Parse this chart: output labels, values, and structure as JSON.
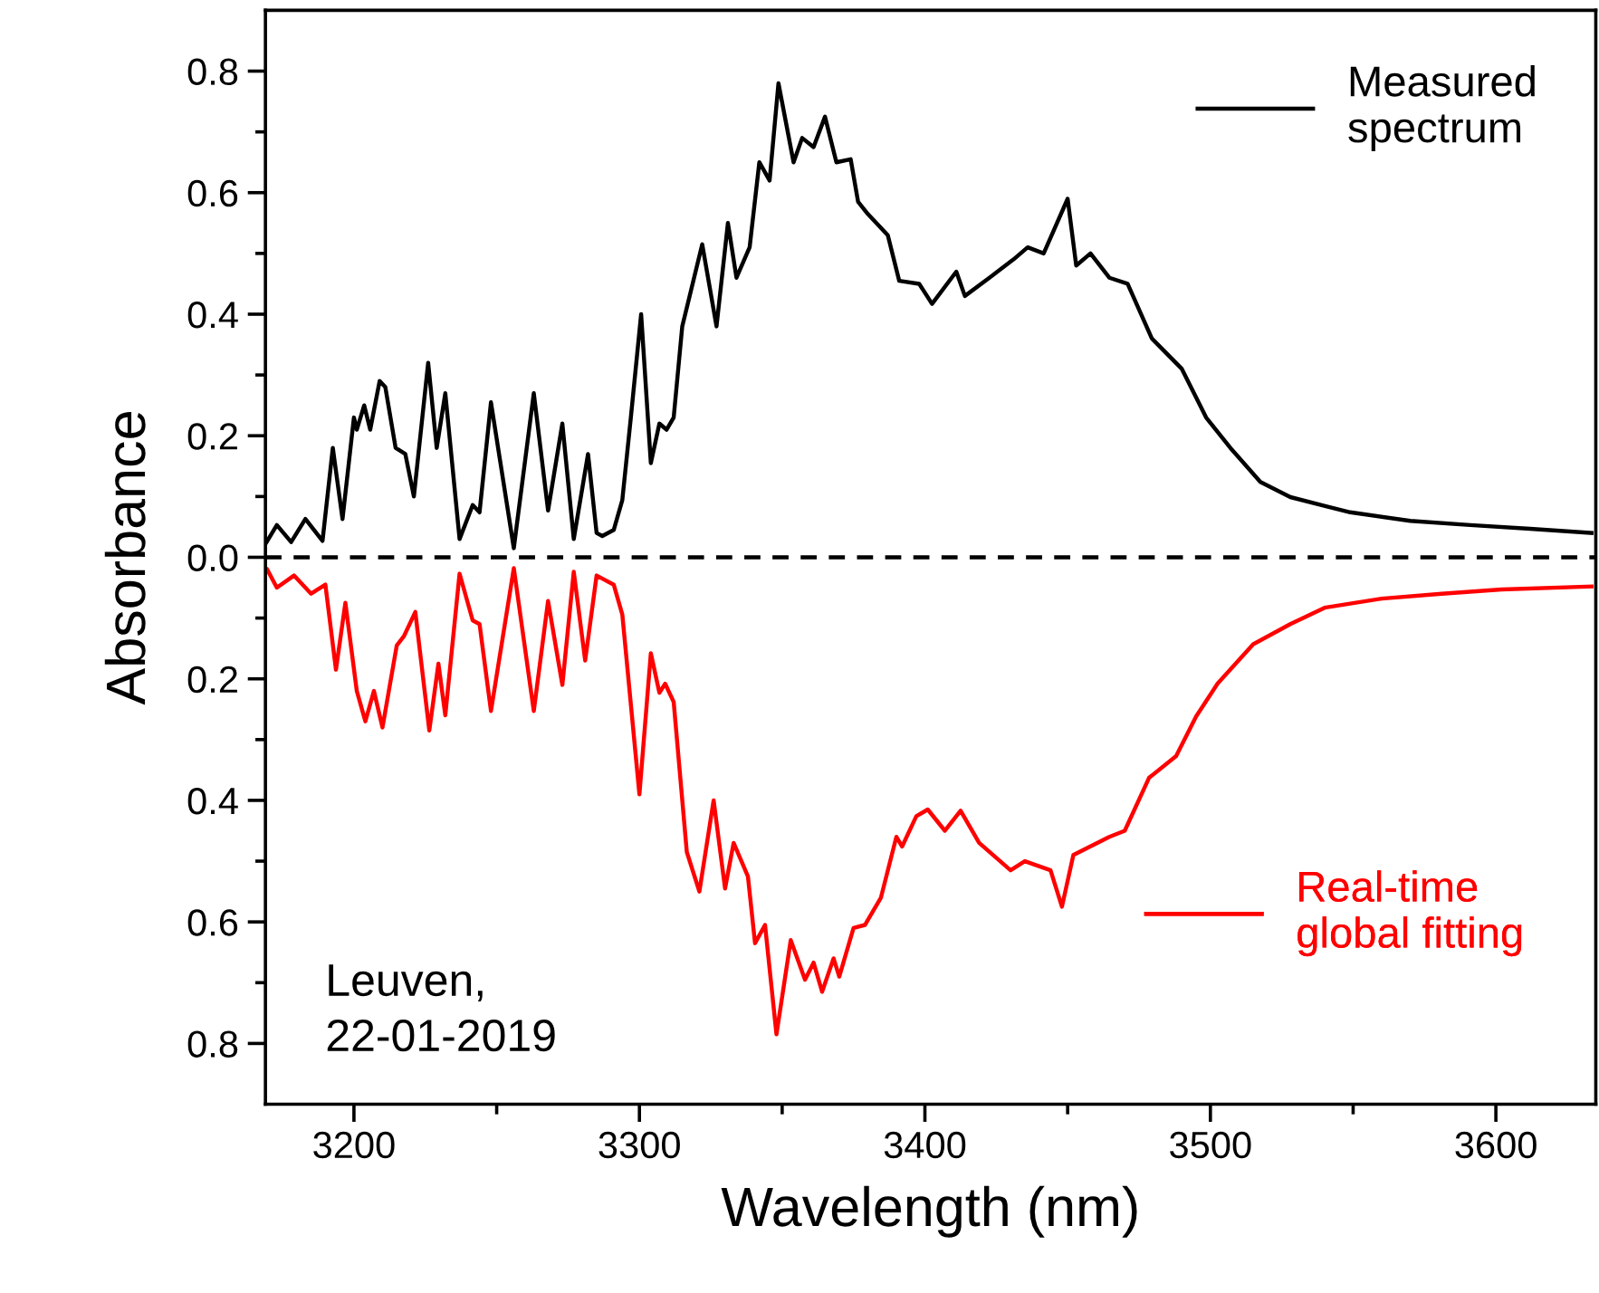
{
  "chart_data": {
    "type": "line",
    "xlabel": "Wavelength (nm)",
    "ylabel": "Absorbance",
    "xlim": [
      3169,
      3635
    ],
    "ylim": [
      -0.9,
      0.9
    ],
    "xticks": [
      3200,
      {
        "value": 3250,
        "label": null
      },
      3300,
      {
        "value": 3350,
        "label": null
      },
      3400,
      {
        "value": 3450,
        "label": null
      },
      3500,
      {
        "value": 3550,
        "label": null
      },
      3600
    ],
    "yticks": [
      {
        "value": 0.8,
        "label": "0.8"
      },
      {
        "value": 0.7,
        "label": null
      },
      {
        "value": 0.6,
        "label": "0.6"
      },
      {
        "value": 0.5,
        "label": null
      },
      {
        "value": 0.4,
        "label": "0.4"
      },
      {
        "value": 0.3,
        "label": null
      },
      {
        "value": 0.2,
        "label": "0.2"
      },
      {
        "value": 0.1,
        "label": null
      },
      {
        "value": 0,
        "label": "0.0"
      },
      {
        "value": -0.1,
        "label": null
      },
      {
        "value": -0.2,
        "label": "0.2"
      },
      {
        "value": -0.3,
        "label": null
      },
      {
        "value": -0.4,
        "label": "0.4"
      },
      {
        "value": -0.5,
        "label": null
      },
      {
        "value": -0.6,
        "label": "0.6"
      },
      {
        "value": -0.7,
        "label": null
      },
      {
        "value": -0.8,
        "label": "0.8"
      }
    ],
    "grid": false,
    "legend": "right",
    "line_style": "solid",
    "marker": "none",
    "ref_lines": [
      {
        "axis": "y",
        "value": 0,
        "label": null,
        "color": "#000000",
        "line_style": "dashed"
      }
    ],
    "annotations": [
      "Leuven,\n22-01-2019"
    ],
    "series": [
      {
        "name": "Measured\nspectrum",
        "color": "#000000",
        "x": [
          3169.4,
          3173,
          3178,
          3183,
          3189,
          3192.6,
          3196,
          3200,
          3201,
          3203.6,
          3205.7,
          3209,
          3211,
          3214.6,
          3218,
          3221,
          3226,
          3229,
          3232,
          3237,
          3241.6,
          3244,
          3248,
          3256,
          3263,
          3268,
          3273,
          3277,
          3282,
          3285,
          3287,
          3291,
          3294,
          3297,
          3300.6,
          3304,
          3307,
          3309.5,
          3312,
          3315,
          3322,
          3327,
          3331,
          3334,
          3338.6,
          3342,
          3345.6,
          3348.7,
          3354,
          3357,
          3361,
          3365,
          3369,
          3374,
          3376.6,
          3380,
          3387,
          3391,
          3398,
          3402.5,
          3411,
          3414,
          3422.6,
          3431,
          3436,
          3441.6,
          3450,
          3453,
          3458,
          3464.6,
          3471,
          3479.5,
          3490,
          3498.5,
          3507,
          3517.5,
          3528,
          3540.5,
          3549,
          3570,
          3591,
          3612,
          3633.5
        ],
        "values": [
          0.025,
          0.053,
          0.025,
          0.063,
          0.027,
          0.18,
          0.063,
          0.23,
          0.21,
          0.25,
          0.21,
          0.29,
          0.28,
          0.18,
          0.17,
          0.1,
          0.32,
          0.18,
          0.27,
          0.03,
          0.086,
          0.074,
          0.255,
          0.015,
          0.27,
          0.077,
          0.22,
          0.03,
          0.17,
          0.04,
          0.035,
          0.045,
          0.094,
          0.23,
          0.4,
          0.155,
          0.22,
          0.21,
          0.23,
          0.38,
          0.515,
          0.38,
          0.55,
          0.46,
          0.51,
          0.65,
          0.62,
          0.78,
          0.65,
          0.69,
          0.675,
          0.725,
          0.65,
          0.655,
          0.585,
          0.565,
          0.53,
          0.455,
          0.45,
          0.417,
          0.47,
          0.43,
          0.46,
          0.49,
          0.51,
          0.5,
          0.59,
          0.48,
          0.5,
          0.46,
          0.45,
          0.36,
          0.31,
          0.23,
          0.18,
          0.124,
          0.099,
          0.084,
          0.074,
          0.06,
          0.053,
          0.047,
          0.04
        ]
      },
      {
        "name": "Real-time\nglobal fitting",
        "color": "#ff0000",
        "x": [
          3169.6,
          3173,
          3179,
          3185,
          3190,
          3193.7,
          3197,
          3201,
          3204,
          3207,
          3210,
          3215,
          3217.5,
          3221.5,
          3226.4,
          3229.6,
          3232,
          3237,
          3241.6,
          3244,
          3248,
          3256,
          3263,
          3268,
          3273,
          3277,
          3281,
          3285,
          3291,
          3294,
          3300,
          3304,
          3307,
          3309,
          3312,
          3316.6,
          3321,
          3326,
          3330,
          3333,
          3338,
          3340.5,
          3344,
          3348,
          3353,
          3358,
          3361,
          3364,
          3368,
          3370,
          3375,
          3379,
          3384.6,
          3390,
          3392,
          3397,
          3401,
          3407,
          3412.5,
          3419,
          3430,
          3435,
          3444,
          3448,
          3452,
          3464.6,
          3470,
          3478.5,
          3488,
          3495,
          3502.5,
          3515,
          3528,
          3540,
          3560,
          3581,
          3602,
          3633.5
        ],
        "values": [
          -0.02,
          -0.05,
          -0.03,
          -0.06,
          -0.045,
          -0.185,
          -0.075,
          -0.22,
          -0.27,
          -0.22,
          -0.28,
          -0.145,
          -0.13,
          -0.09,
          -0.285,
          -0.175,
          -0.26,
          -0.027,
          -0.104,
          -0.11,
          -0.253,
          -0.018,
          -0.253,
          -0.072,
          -0.21,
          -0.024,
          -0.17,
          -0.03,
          -0.045,
          -0.094,
          -0.39,
          -0.158,
          -0.223,
          -0.208,
          -0.238,
          -0.485,
          -0.55,
          -0.4,
          -0.545,
          -0.47,
          -0.525,
          -0.635,
          -0.605,
          -0.785,
          -0.63,
          -0.695,
          -0.667,
          -0.715,
          -0.66,
          -0.69,
          -0.61,
          -0.605,
          -0.56,
          -0.46,
          -0.476,
          -0.426,
          -0.415,
          -0.45,
          -0.417,
          -0.47,
          -0.515,
          -0.5,
          -0.515,
          -0.575,
          -0.49,
          -0.46,
          -0.45,
          -0.363,
          -0.327,
          -0.262,
          -0.208,
          -0.143,
          -0.11,
          -0.083,
          -0.068,
          -0.06,
          -0.053,
          -0.048
        ]
      }
    ]
  }
}
